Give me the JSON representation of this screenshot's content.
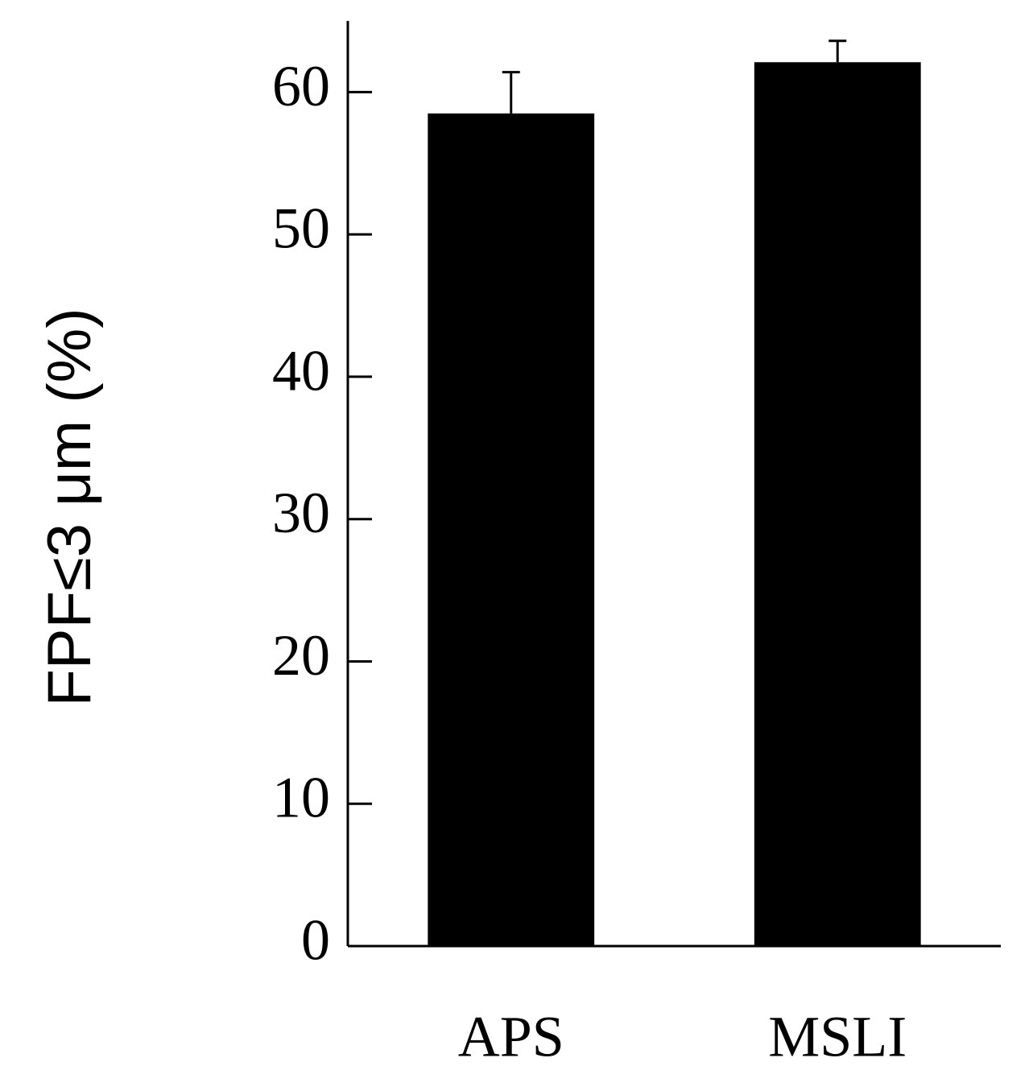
{
  "chart_data": {
    "type": "bar",
    "y_label": "FPF≤3 μm (%)",
    "categories": [
      "APS",
      "MSLI"
    ],
    "values": [
      58.5,
      62.1
    ],
    "error": [
      2.9,
      1.5
    ],
    "color": "#000000",
    "ylim": [
      0,
      65
    ],
    "yticks": [
      0,
      10,
      20,
      30,
      40,
      50,
      60
    ]
  }
}
